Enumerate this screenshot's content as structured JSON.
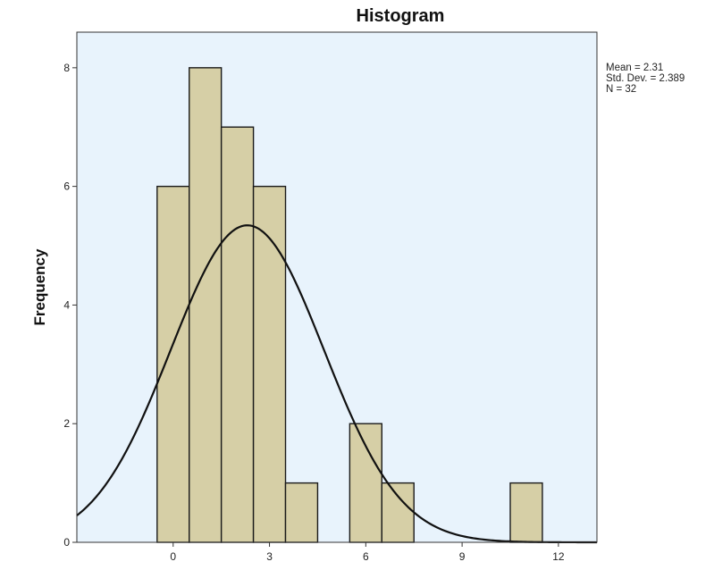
{
  "chart_data": {
    "type": "bar",
    "title": "Histogram",
    "xlabel": "",
    "ylabel": "Frequency",
    "xlim": [
      -3,
      13.2
    ],
    "ylim": [
      0,
      8.6
    ],
    "x_ticks": [
      "0",
      "3",
      "6",
      "9",
      "12"
    ],
    "x_tick_values": [
      0,
      3,
      6,
      9,
      12
    ],
    "y_ticks": [
      "0",
      "2",
      "4",
      "6",
      "8"
    ],
    "y_tick_values": [
      0,
      2,
      4,
      6,
      8
    ],
    "bin_width": 1,
    "bins": [
      {
        "center": 0,
        "count": 6
      },
      {
        "center": 1,
        "count": 8
      },
      {
        "center": 2,
        "count": 7
      },
      {
        "center": 3,
        "count": 6
      },
      {
        "center": 4,
        "count": 1
      },
      {
        "center": 5,
        "count": 0
      },
      {
        "center": 6,
        "count": 2
      },
      {
        "center": 7,
        "count": 1
      },
      {
        "center": 8,
        "count": 0
      },
      {
        "center": 9,
        "count": 0
      },
      {
        "center": 10,
        "count": 0
      },
      {
        "center": 11,
        "count": 1
      }
    ],
    "normal_curve": {
      "mean": 2.31,
      "std": 2.389,
      "n": 32
    },
    "grid": false,
    "colors": {
      "plot_background": "#e8f3fc",
      "bar_fill": "#d6cfa6",
      "bar_stroke": "#1a1a1a",
      "curve": "#111111"
    },
    "stats_text": {
      "mean": "Mean = 2.31",
      "std": "Std. Dev. = 2.389",
      "n": "N = 32"
    }
  }
}
